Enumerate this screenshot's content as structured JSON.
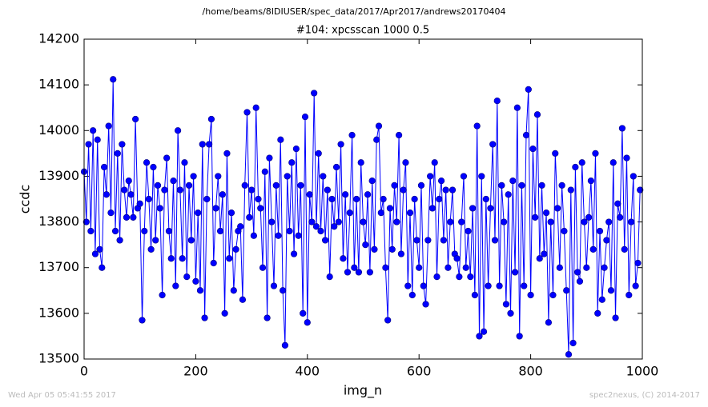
{
  "chart_data": {
    "type": "line",
    "title": "/home/beams/8IDIUSER/spec_data/2017/Apr2017/andrews20170404",
    "subtitle": "#104: xpcsscan 1000 0.5",
    "xlabel": "img_n",
    "ylabel": "ccdc",
    "footer_left": "Wed Apr 05 05:41:55 2017",
    "footer_right": "spec2nexus, (C) 2014-2017",
    "color": "#0000ff",
    "x": [
      0,
      4,
      8,
      12,
      16,
      20,
      24,
      28,
      32,
      36,
      40,
      44,
      48,
      52,
      56,
      60,
      64,
      68,
      72,
      76,
      80,
      84,
      88,
      92,
      96,
      100,
      104,
      108,
      112,
      116,
      120,
      124,
      128,
      132,
      136,
      140,
      144,
      148,
      152,
      156,
      160,
      164,
      168,
      172,
      176,
      180,
      184,
      188,
      192,
      196,
      200,
      204,
      208,
      212,
      216,
      220,
      224,
      228,
      232,
      236,
      240,
      244,
      248,
      252,
      256,
      260,
      264,
      268,
      272,
      276,
      280,
      284,
      288,
      292,
      296,
      300,
      304,
      308,
      312,
      316,
      320,
      324,
      328,
      332,
      336,
      340,
      344,
      348,
      352,
      356,
      360,
      364,
      368,
      372,
      376,
      380,
      384,
      388,
      392,
      396,
      400,
      404,
      408,
      412,
      416,
      420,
      424,
      428,
      432,
      436,
      440,
      444,
      448,
      452,
      456,
      460,
      464,
      468,
      472,
      476,
      480,
      484,
      488,
      492,
      496,
      500,
      504,
      508,
      512,
      516,
      520,
      524,
      528,
      532,
      536,
      540,
      544,
      548,
      552,
      556,
      560,
      564,
      568,
      572,
      576,
      580,
      584,
      588,
      592,
      596,
      600,
      604,
      608,
      612,
      616,
      620,
      624,
      628,
      632,
      636,
      640,
      644,
      648,
      652,
      656,
      660,
      664,
      668,
      672,
      676,
      680,
      684,
      688,
      692,
      696,
      700,
      704,
      708,
      712,
      716,
      720,
      724,
      728,
      732,
      736,
      740,
      744,
      748,
      752,
      756,
      760,
      764,
      768,
      772,
      776,
      780,
      784,
      788,
      792,
      796,
      800,
      804,
      808,
      812,
      816,
      820,
      824,
      828,
      832,
      836,
      840,
      844,
      848,
      852,
      856,
      860,
      864,
      868,
      872,
      876,
      880,
      884,
      888,
      892,
      896,
      900,
      904,
      908,
      912,
      916,
      920,
      924,
      928,
      932,
      936,
      940,
      944,
      948,
      952,
      956,
      960,
      964,
      968,
      972,
      976,
      980,
      984,
      988,
      992,
      996
    ],
    "values": [
      13910,
      13800,
      13970,
      13780,
      14000,
      13730,
      13980,
      13740,
      13700,
      13920,
      13860,
      14010,
      13820,
      14112,
      13780,
      13950,
      13760,
      13970,
      13870,
      13810,
      13890,
      13860,
      13810,
      14025,
      13830,
      13840,
      13585,
      13780,
      13930,
      13850,
      13740,
      13920,
      13760,
      13880,
      13830,
      13640,
      13870,
      13940,
      13780,
      13720,
      13890,
      13660,
      14000,
      13870,
      13720,
      13930,
      13680,
      13880,
      13760,
      13900,
      13670,
      13820,
      13650,
      13970,
      13590,
      13850,
      13970,
      14025,
      13710,
      13830,
      13900,
      13780,
      13860,
      13600,
      13950,
      13720,
      13820,
      13650,
      13740,
      13780,
      13790,
      13630,
      13880,
      14040,
      13810,
      13870,
      13770,
      14050,
      13850,
      13830,
      13700,
      13910,
      13590,
      13940,
      13800,
      13660,
      13880,
      13770,
      13980,
      13650,
      13530,
      13900,
      13780,
      13930,
      13730,
      13960,
      13770,
      13880,
      13600,
      14030,
      13580,
      13860,
      13800,
      14082,
      13790,
      13950,
      13780,
      13900,
      13760,
      13870,
      13680,
      13850,
      13790,
      13920,
      13800,
      13970,
      13720,
      13860,
      13690,
      13820,
      13990,
      13700,
      13850,
      13690,
      13930,
      13800,
      13750,
      13860,
      13690,
      13890,
      13740,
      13980,
      14010,
      13820,
      13850,
      13700,
      13585,
      13830,
      13740,
      13880,
      13800,
      13990,
      13730,
      13870,
      13930,
      13660,
      13820,
      13640,
      13850,
      13760,
      13700,
      13880,
      13660,
      13620,
      13760,
      13900,
      13830,
      13930,
      13680,
      13850,
      13890,
      13760,
      13870,
      13700,
      13800,
      13870,
      13730,
      13720,
      13680,
      13800,
      13900,
      13700,
      13780,
      13680,
      13830,
      13640,
      14010,
      13550,
      13900,
      13560,
      13850,
      13660,
      13830,
      13970,
      13760,
      14065,
      13660,
      13880,
      13800,
      13620,
      13860,
      13600,
      13890,
      13690,
      14050,
      13550,
      13880,
      13660,
      13990,
      14090,
      13640,
      13960,
      13810,
      14035,
      13720,
      13880,
      13730,
      13820,
      13580,
      13800,
      13640,
      13950,
      13830,
      13700,
      13880,
      13780,
      13650,
      13510,
      13870,
      13535,
      13920,
      13690,
      13670,
      13930,
      13800,
      13700,
      13810,
      13890,
      13740,
      13950,
      13600,
      13780,
      13630,
      13700,
      13760,
      13800,
      13650,
      13930,
      13590,
      13840,
      13810,
      14005,
      13740,
      13940,
      13640,
      13800,
      13900,
      13660,
      13710,
      13870
    ],
    "xlim": [
      0,
      1000
    ],
    "xticks": [
      0,
      200,
      400,
      600,
      800,
      1000
    ],
    "ylim": [
      13500,
      14200
    ],
    "yticks": [
      13500,
      13600,
      13700,
      13800,
      13900,
      14000,
      14100,
      14200
    ]
  }
}
